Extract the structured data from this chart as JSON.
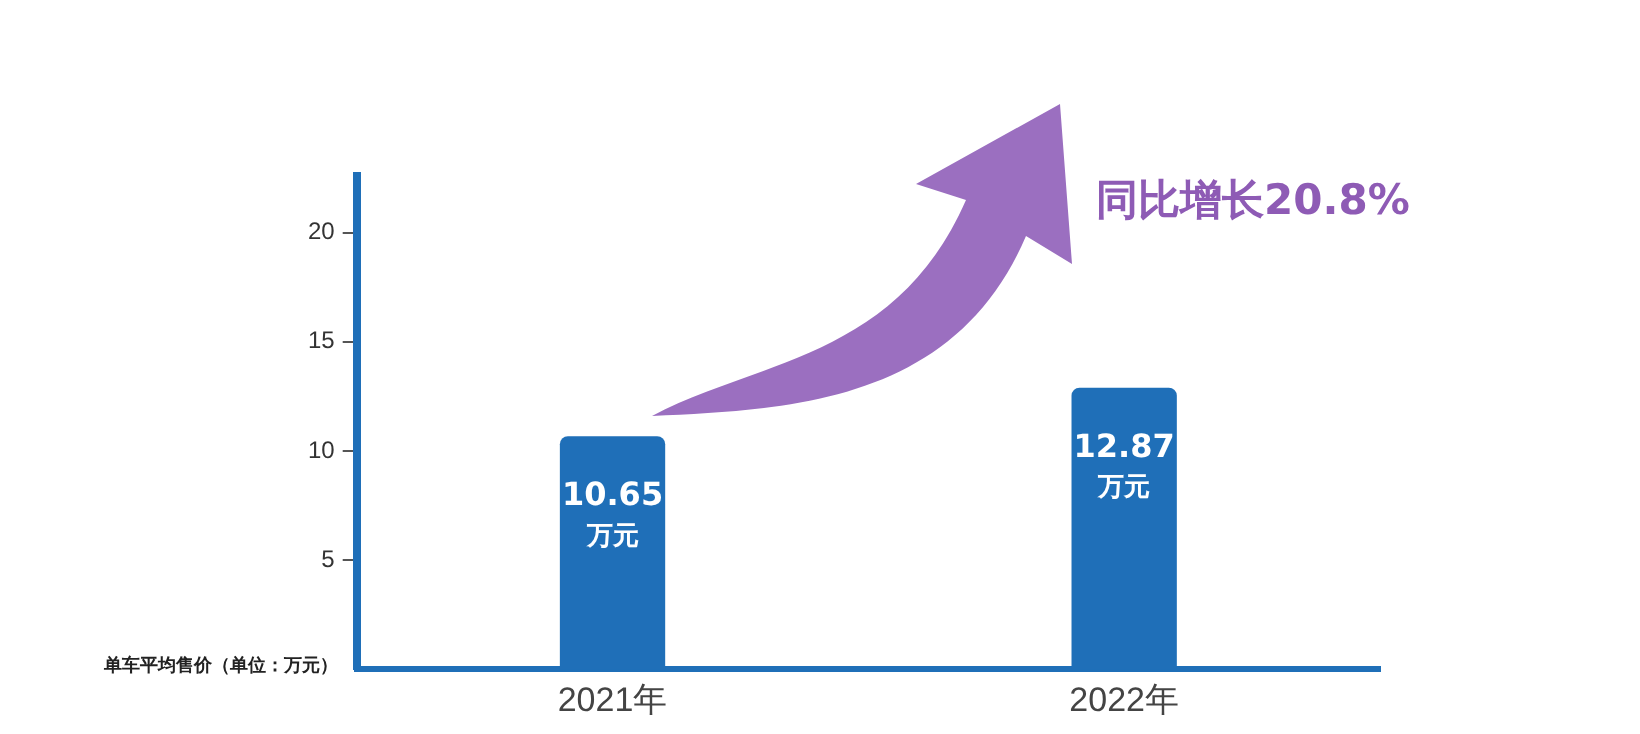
{
  "chart_data": {
    "type": "bar",
    "categories": [
      "2021年",
      "2022年"
    ],
    "values": [
      10.65,
      12.87
    ],
    "color": "#1f6fb8",
    "value_labels": [
      "10.65 万元",
      "12.87 万元"
    ],
    "ylabel": "单车平均售价（单位：万元）",
    "ylim": [
      0,
      22.6
    ],
    "yticks": [
      5,
      10,
      15,
      20
    ],
    "grid": false,
    "legend": false,
    "annotations": [
      "同比增长20.8%"
    ]
  }
}
